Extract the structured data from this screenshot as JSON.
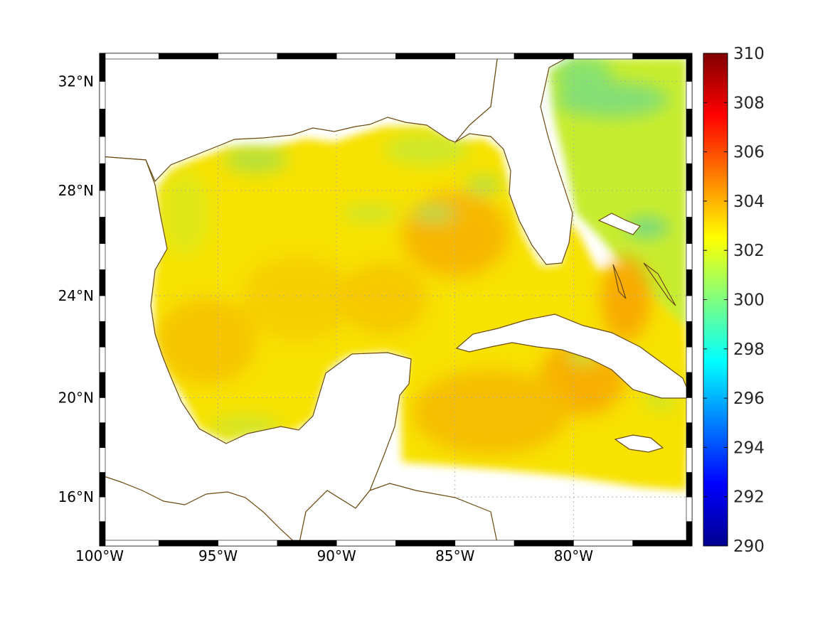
{
  "map": {
    "projection": "mercator",
    "extent": {
      "lon_min": -100,
      "lon_max": -75,
      "lat_min": 14,
      "lat_max": 33
    },
    "lon_ticks": [
      {
        "value": -100,
        "label": "100°W"
      },
      {
        "value": -95,
        "label": "95°W"
      },
      {
        "value": -90,
        "label": "90°W"
      },
      {
        "value": -85,
        "label": "85°W"
      },
      {
        "value": -80,
        "label": "80°W"
      }
    ],
    "lat_ticks": [
      {
        "value": 16,
        "label": "16°N"
      },
      {
        "value": 20,
        "label": "20°N"
      },
      {
        "value": 24,
        "label": "24°N"
      },
      {
        "value": 28,
        "label": "28°N"
      },
      {
        "value": 32,
        "label": "32°N"
      }
    ],
    "grid": true,
    "grid_style": "dotted",
    "frame_style": "black-white-checker",
    "coastline_color": "#6b4a10",
    "field_colormap": "jet"
  },
  "colorbar": {
    "min": 290,
    "max": 310,
    "position": "right",
    "ticks": [
      {
        "value": 290,
        "label": "290"
      },
      {
        "value": 292,
        "label": "292"
      },
      {
        "value": 294,
        "label": "294"
      },
      {
        "value": 296,
        "label": "296"
      },
      {
        "value": 298,
        "label": "298"
      },
      {
        "value": 300,
        "label": "300"
      },
      {
        "value": 302,
        "label": "302"
      },
      {
        "value": 304,
        "label": "304"
      },
      {
        "value": 306,
        "label": "306"
      },
      {
        "value": 308,
        "label": "308"
      },
      {
        "value": 310,
        "label": "310"
      }
    ],
    "colormap": "jet"
  }
}
